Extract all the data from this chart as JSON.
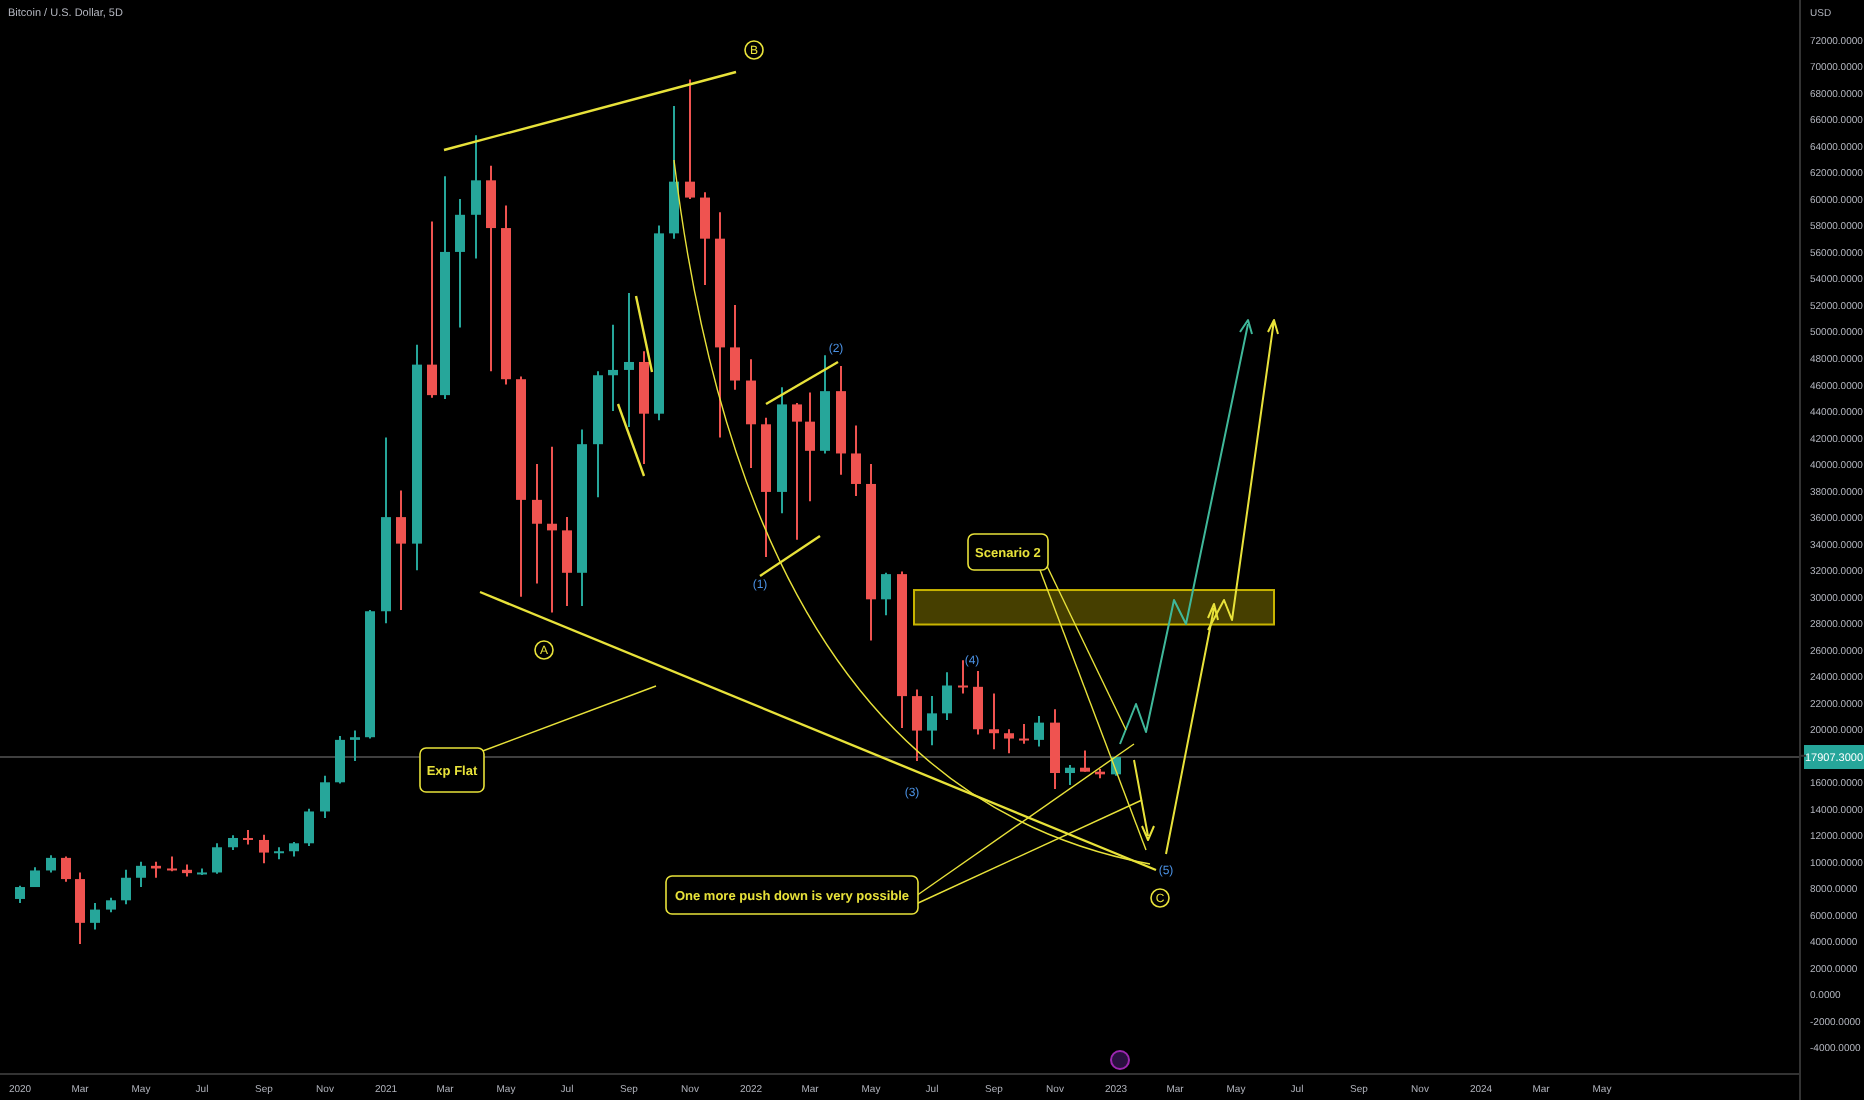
{
  "chart_data": {
    "type": "candlestick",
    "title": "Bitcoin / U.S. Dollar, 5D",
    "ylabel": "USD",
    "x": [
      "2020-01-01",
      "2020-01-16",
      "2020-02-01",
      "2020-02-16",
      "2020-03-01",
      "2020-03-16",
      "2020-04-01",
      "2020-04-16",
      "2020-05-01",
      "2020-05-16",
      "2020-06-01",
      "2020-06-16",
      "2020-07-01",
      "2020-07-16",
      "2020-08-01",
      "2020-08-16",
      "2020-09-01",
      "2020-09-16",
      "2020-10-01",
      "2020-10-16",
      "2020-11-01",
      "2020-11-16",
      "2020-12-01",
      "2020-12-16",
      "2021-01-01",
      "2021-01-16",
      "2021-02-01",
      "2021-02-16",
      "2021-03-01",
      "2021-03-16",
      "2021-04-01",
      "2021-04-16",
      "2021-05-01",
      "2021-05-16",
      "2021-06-01",
      "2021-06-16",
      "2021-07-01",
      "2021-07-16",
      "2021-08-01",
      "2021-08-16",
      "2021-09-01",
      "2021-09-16",
      "2021-10-01",
      "2021-10-16",
      "2021-11-01",
      "2021-11-16",
      "2021-12-01",
      "2021-12-16",
      "2022-01-01",
      "2022-01-16",
      "2022-02-01",
      "2022-02-16",
      "2022-03-01",
      "2022-03-16",
      "2022-04-01",
      "2022-04-16",
      "2022-05-01",
      "2022-05-16",
      "2022-06-01",
      "2022-06-16",
      "2022-07-01",
      "2022-07-16",
      "2022-08-01",
      "2022-08-16",
      "2022-09-01",
      "2022-09-16",
      "2022-10-01",
      "2022-10-16",
      "2022-11-01",
      "2022-11-16",
      "2022-12-01",
      "2022-12-16",
      "2023-01-01"
    ],
    "ohlc": [
      [
        7200,
        8200,
        6900,
        8100
      ],
      [
        8100,
        9600,
        8100,
        9350
      ],
      [
        9350,
        10500,
        9200,
        10300
      ],
      [
        10300,
        10400,
        8500,
        8700
      ],
      [
        8700,
        9200,
        3800,
        5400
      ],
      [
        5400,
        6900,
        4900,
        6400
      ],
      [
        6400,
        7300,
        6200,
        7100
      ],
      [
        7100,
        9400,
        6800,
        8800
      ],
      [
        8800,
        10000,
        8100,
        9700
      ],
      [
        9700,
        10000,
        8800,
        9500
      ],
      [
        9500,
        10400,
        9300,
        9400
      ],
      [
        9400,
        9800,
        8900,
        9150
      ],
      [
        9150,
        9500,
        9000,
        9200
      ],
      [
        9200,
        11400,
        9100,
        11100
      ],
      [
        11100,
        12000,
        10900,
        11800
      ],
      [
        11800,
        12400,
        11300,
        11650
      ],
      [
        11650,
        12050,
        9900,
        10700
      ],
      [
        10700,
        11100,
        10200,
        10800
      ],
      [
        10800,
        11500,
        10400,
        11400
      ],
      [
        11400,
        14000,
        11200,
        13800
      ],
      [
        13800,
        16500,
        13300,
        16000
      ],
      [
        16000,
        19500,
        15900,
        19200
      ],
      [
        19200,
        19900,
        17600,
        19400
      ],
      [
        19400,
        29000,
        19300,
        28900
      ],
      [
        28900,
        42000,
        28000,
        36000
      ],
      [
        36000,
        38000,
        29000,
        34000
      ],
      [
        34000,
        49000,
        32000,
        47500
      ],
      [
        47500,
        58300,
        45000,
        45200
      ],
      [
        45200,
        61700,
        44900,
        56000
      ],
      [
        56000,
        60000,
        50300,
        58800
      ],
      [
        58800,
        64800,
        55500,
        61400
      ],
      [
        61400,
        62500,
        47000,
        57800
      ],
      [
        57800,
        59500,
        46000,
        46400
      ],
      [
        46400,
        46600,
        30000,
        37300
      ],
      [
        37300,
        40000,
        31000,
        35500
      ],
      [
        35500,
        41300,
        28800,
        35000
      ],
      [
        35000,
        36000,
        29300,
        31800
      ],
      [
        31800,
        42600,
        29300,
        41500
      ],
      [
        41500,
        47000,
        37500,
        46700
      ],
      [
        46700,
        50500,
        44000,
        47100
      ],
      [
        47100,
        52900,
        42800,
        47700
      ],
      [
        47700,
        48500,
        40000,
        43800
      ],
      [
        43800,
        58000,
        43300,
        57400
      ],
      [
        57400,
        67000,
        57000,
        61300
      ],
      [
        61300,
        69000,
        60000,
        60100
      ],
      [
        60100,
        60500,
        53500,
        57000
      ],
      [
        57000,
        59000,
        42000,
        48800
      ],
      [
        48800,
        52000,
        45600,
        46300
      ],
      [
        46300,
        47900,
        39700,
        43000
      ],
      [
        43000,
        43500,
        33000,
        37900
      ],
      [
        37900,
        45800,
        36300,
        44500
      ],
      [
        44500,
        44600,
        34300,
        43200
      ],
      [
        43200,
        45400,
        37200,
        41000
      ],
      [
        41000,
        48200,
        40800,
        45500
      ],
      [
        45500,
        47400,
        39200,
        40800
      ],
      [
        40800,
        42900,
        37600,
        38500
      ],
      [
        38500,
        40000,
        26700,
        29800
      ],
      [
        29800,
        31800,
        28600,
        31700
      ],
      [
        31700,
        31900,
        20100,
        22500
      ],
      [
        22500,
        23000,
        17600,
        19900
      ],
      [
        19900,
        22500,
        18800,
        21200
      ],
      [
        21200,
        24300,
        20700,
        23300
      ],
      [
        23300,
        25200,
        22700,
        23200
      ],
      [
        23200,
        24400,
        19600,
        20000
      ],
      [
        20000,
        22700,
        18500,
        19700
      ],
      [
        19700,
        20000,
        18200,
        19300
      ],
      [
        19300,
        20400,
        18900,
        19200
      ],
      [
        19200,
        21000,
        18700,
        20500
      ],
      [
        20500,
        21500,
        15500,
        16700
      ],
      [
        16700,
        17300,
        15800,
        17100
      ],
      [
        17100,
        18400,
        16800,
        16800
      ],
      [
        16800,
        17000,
        16300,
        16600
      ],
      [
        16600,
        17907.3,
        16500,
        17907.3
      ]
    ],
    "xlim": [
      "2019-12-12",
      "2024-11-15"
    ],
    "xticks": [
      {
        "value": "2020-01-01",
        "label": "2020"
      },
      {
        "value": "2020-03-01",
        "label": "Mar"
      },
      {
        "value": "2020-05-01",
        "label": "May"
      },
      {
        "value": "2020-07-01",
        "label": "Jul"
      },
      {
        "value": "2020-09-01",
        "label": "Sep"
      },
      {
        "value": "2020-11-01",
        "label": "Nov"
      },
      {
        "value": "2021-01-01",
        "label": "2021"
      },
      {
        "value": "2021-03-01",
        "label": "Mar"
      },
      {
        "value": "2021-05-01",
        "label": "May"
      },
      {
        "value": "2021-07-01",
        "label": "Jul"
      },
      {
        "value": "2021-09-01",
        "label": "Sep"
      },
      {
        "value": "2021-11-01",
        "label": "Nov"
      },
      {
        "value": "2022-01-01",
        "label": "2022"
      },
      {
        "value": "2022-03-01",
        "label": "Mar"
      },
      {
        "value": "2022-05-01",
        "label": "May"
      },
      {
        "value": "2022-07-01",
        "label": "Jul"
      },
      {
        "value": "2022-09-01",
        "label": "Sep"
      },
      {
        "value": "2022-11-01",
        "label": "Nov"
      },
      {
        "value": "2023-01-01",
        "label": "2023"
      },
      {
        "value": "2023-03-01",
        "label": "Mar"
      },
      {
        "value": "2023-05-01",
        "label": "May"
      },
      {
        "value": "2023-07-01",
        "label": "Jul"
      },
      {
        "value": "2023-09-01",
        "label": "Sep"
      },
      {
        "value": "2023-11-01",
        "label": "Nov"
      },
      {
        "value": "2024-01-01",
        "label": "2024"
      },
      {
        "value": "2024-03-01",
        "label": "Mar"
      },
      {
        "value": "2024-05-01",
        "label": "May"
      }
    ],
    "ylim": [
      -6000,
      75000
    ],
    "yticks": [
      {
        "value": -4000,
        "label": "-4000.0000"
      },
      {
        "value": -2000,
        "label": "-2000.0000"
      },
      {
        "value": 0,
        "label": "0.0000"
      },
      {
        "value": 2000,
        "label": "2000.0000"
      },
      {
        "value": 4000,
        "label": "4000.0000"
      },
      {
        "value": 6000,
        "label": "6000.0000"
      },
      {
        "value": 8000,
        "label": "8000.0000"
      },
      {
        "value": 10000,
        "label": "10000.0000"
      },
      {
        "value": 12000,
        "label": "12000.0000"
      },
      {
        "value": 14000,
        "label": "14000.0000"
      },
      {
        "value": 16000,
        "label": "16000.0000"
      },
      {
        "value": 18000,
        "label": null
      },
      {
        "value": 20000,
        "label": "20000.0000"
      },
      {
        "value": 22000,
        "label": "22000.0000"
      },
      {
        "value": 24000,
        "label": "24000.0000"
      },
      {
        "value": 26000,
        "label": "26000.0000"
      },
      {
        "value": 28000,
        "label": "28000.0000"
      },
      {
        "value": 30000,
        "label": "30000.0000"
      },
      {
        "value": 32000,
        "label": "32000.0000"
      },
      {
        "value": 34000,
        "label": "34000.0000"
      },
      {
        "value": 36000,
        "label": "36000.0000"
      },
      {
        "value": 38000,
        "label": "38000.0000"
      },
      {
        "value": 40000,
        "label": "40000.0000"
      },
      {
        "value": 42000,
        "label": "42000.0000"
      },
      {
        "value": 44000,
        "label": "44000.0000"
      },
      {
        "value": 46000,
        "label": "46000.0000"
      },
      {
        "value": 48000,
        "label": "48000.0000"
      },
      {
        "value": 50000,
        "label": "50000.0000"
      },
      {
        "value": 52000,
        "label": "52000.0000"
      },
      {
        "value": 54000,
        "label": "54000.0000"
      },
      {
        "value": 56000,
        "label": "56000.0000"
      },
      {
        "value": 58000,
        "label": "58000.0000"
      },
      {
        "value": 60000,
        "label": "60000.0000"
      },
      {
        "value": 62000,
        "label": "62000.0000"
      },
      {
        "value": 64000,
        "label": "64000.0000"
      },
      {
        "value": 66000,
        "label": "66000.0000"
      },
      {
        "value": 68000,
        "label": "68000.0000"
      },
      {
        "value": 70000,
        "label": "70000.0000"
      },
      {
        "value": 72000,
        "label": "72000.0000"
      }
    ],
    "ref_lines": [
      {
        "axis": "y",
        "value": 17907.3,
        "label": "17907.3000",
        "color": "#555555"
      }
    ],
    "bands": [
      {
        "axis": "y",
        "from": 27900,
        "to": 30500,
        "color": "#c8b400"
      }
    ],
    "annotations": [
      "Scenario 2",
      "Exp Flat",
      "One more push down is very possible",
      "A",
      "B",
      "C",
      "(1)",
      "(2)",
      "(3)",
      "(4)",
      "(5)"
    ]
  }
}
